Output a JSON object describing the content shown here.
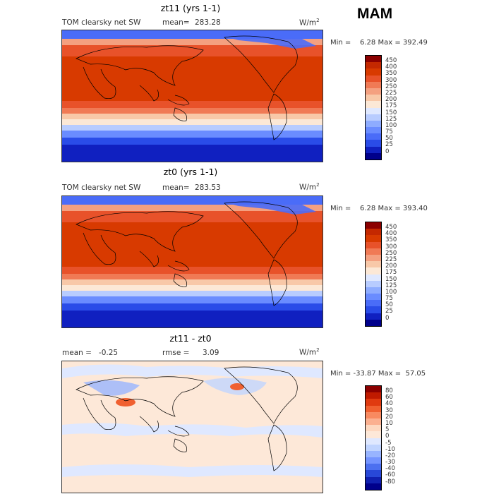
{
  "season": "MAM",
  "panels": [
    {
      "title": "zt11 (yrs 1-1)",
      "variable": "TOM clearsky net SW",
      "mean_label": "mean=",
      "mean": "283.28",
      "units": "W/m",
      "units_sup": "2",
      "minmax": "Min =    6.28 Max = 392.49",
      "colorbar_levels": [
        "450",
        "400",
        "350",
        "300",
        "250",
        "225",
        "200",
        "175",
        "150",
        "125",
        "100",
        "75",
        "50",
        "25",
        "0"
      ],
      "colors": [
        "#8b0000",
        "#c42800",
        "#d83a00",
        "#e8522a",
        "#f07a55",
        "#f4a080",
        "#f8c8a8",
        "#fce8d6",
        "#dfe8ff",
        "#b8ccff",
        "#8eacff",
        "#6a8cff",
        "#4a6cf8",
        "#2a4ce8",
        "#1020c0",
        "#00008b"
      ]
    },
    {
      "title": "zt0 (yrs 1-1)",
      "variable": "TOM clearsky net SW",
      "mean_label": "mean=",
      "mean": "283.53",
      "units": "W/m",
      "units_sup": "2",
      "minmax": "Min =    6.28 Max = 393.40",
      "colorbar_levels": [
        "450",
        "400",
        "350",
        "300",
        "250",
        "225",
        "200",
        "175",
        "150",
        "125",
        "100",
        "75",
        "50",
        "25",
        "0"
      ],
      "colors": [
        "#8b0000",
        "#c42800",
        "#d83a00",
        "#e8522a",
        "#f07a55",
        "#f4a080",
        "#f8c8a8",
        "#fce8d6",
        "#dfe8ff",
        "#b8ccff",
        "#8eacff",
        "#6a8cff",
        "#4a6cf8",
        "#2a4ce8",
        "#1020c0",
        "#00008b"
      ]
    },
    {
      "title": "zt11 - zt0",
      "variable": "mean =   -0.25",
      "mean_label": "rmse =",
      "mean": "3.09",
      "units": "W/m",
      "units_sup": "2",
      "minmax": "Min = -33.87 Max =  57.05",
      "colorbar_levels": [
        "80",
        "60",
        "40",
        "30",
        "20",
        "10",
        "5",
        "0",
        "-5",
        "-10",
        "-20",
        "-30",
        "-40",
        "-60",
        "-80"
      ],
      "colors": [
        "#8b0000",
        "#c01a00",
        "#e03a10",
        "#f06030",
        "#f88a60",
        "#fbb090",
        "#fdd8c0",
        "#fde8d8",
        "#dfe8ff",
        "#c0d4ff",
        "#98b4ff",
        "#7494ff",
        "#4c70f0",
        "#2848d8",
        "#1020b0",
        "#00008b"
      ]
    }
  ]
}
